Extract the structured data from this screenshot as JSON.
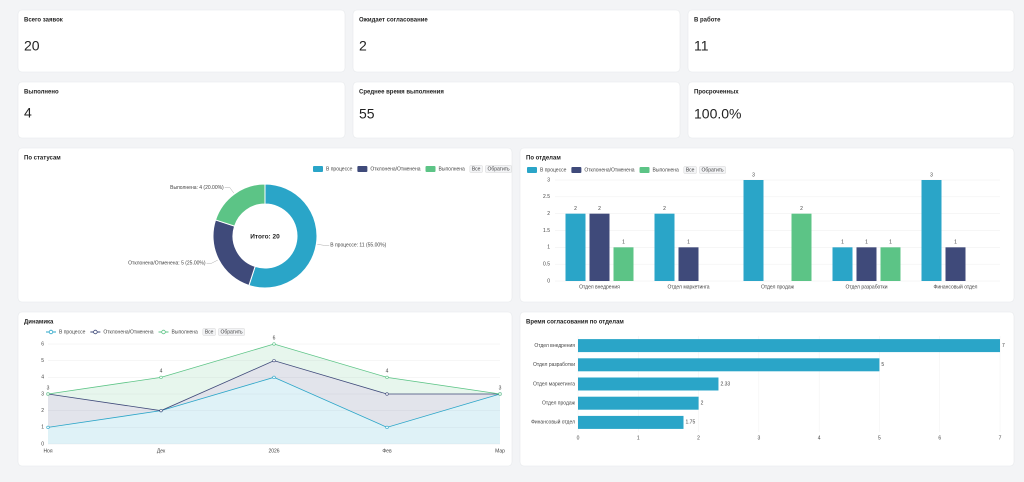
{
  "kpis": [
    {
      "label": "Всего заявок",
      "value": "20"
    },
    {
      "label": "Ожидает согласование",
      "value": "2"
    },
    {
      "label": "В работе",
      "value": "11"
    },
    {
      "label": "Выполнено",
      "value": "4"
    },
    {
      "label": "Среднее время выполнения",
      "value": "55"
    },
    {
      "label": "Просроченных",
      "value": "100.0%"
    }
  ],
  "chart_data": [
    {
      "type": "pie",
      "title": "По статусам",
      "categories": [
        "В процессе",
        "Отклонена/Отменена",
        "Выполнена"
      ],
      "values": [
        11,
        5,
        4
      ],
      "value_labels": [
        "В процессе: 11 (55.00%)",
        "Отклонена/Отменена: 5 (25.00%)",
        "Выполнена: 4 (20.00%)"
      ],
      "colors": [
        "#2aa5c8",
        "#3f4a7a",
        "#5cc486"
      ],
      "center_label": "Итого: 20",
      "legend_buttons": [
        "Все",
        "Обратить"
      ]
    },
    {
      "type": "bar",
      "title": "По отделам",
      "categories": [
        "Отдел внедрения",
        "Отдел маркетинга",
        "Отдел продаж",
        "Отдел разработки",
        "Финансовый отдел"
      ],
      "series": [
        {
          "name": "В процессе",
          "color": "#2aa5c8",
          "values": [
            2,
            2,
            3,
            1,
            3
          ]
        },
        {
          "name": "Отклонена/Отменена",
          "color": "#3f4a7a",
          "values": [
            2,
            1,
            null,
            1,
            1
          ]
        },
        {
          "name": "Выполнена",
          "color": "#5cc486",
          "values": [
            1,
            null,
            2,
            1,
            null
          ]
        }
      ],
      "ylim": [
        0,
        3
      ],
      "yticks": [
        0,
        0.5,
        1,
        1.5,
        2,
        2.5,
        3
      ],
      "grid": true,
      "legend_buttons": [
        "Все",
        "Обратить"
      ]
    },
    {
      "type": "area",
      "title": "Динамика",
      "categories": [
        "Ноя",
        "Дек",
        "2026",
        "Фев",
        "Мар"
      ],
      "series": [
        {
          "name": "В процессе",
          "color": "#2aa5c8",
          "values": [
            1,
            2,
            4,
            1,
            3
          ]
        },
        {
          "name": "Отклонена/Отменена",
          "color": "#3f4a7a",
          "values": [
            2,
            0,
            1,
            2,
            0
          ]
        },
        {
          "name": "Выполнена",
          "color": "#5cc486",
          "values": [
            0,
            2,
            1,
            1,
            0
          ]
        }
      ],
      "stacked": true,
      "stack_totals": [
        3,
        4,
        6,
        4,
        3
      ],
      "ylim": [
        0,
        6
      ],
      "yticks": [
        0,
        1,
        2,
        3,
        4,
        5,
        6
      ],
      "grid": true,
      "legend_buttons": [
        "Все",
        "Обратить"
      ]
    },
    {
      "type": "hbar",
      "title": "Время согласования по отделам",
      "categories": [
        "Отдел внедрения",
        "Отдел разработки",
        "Отдел маркетинга",
        "Отдел продаж",
        "Финансовый отдел"
      ],
      "values": [
        7,
        5,
        2.33,
        2,
        1.75
      ],
      "color": "#2aa5c8",
      "xlim": [
        0,
        7
      ],
      "xticks": [
        0,
        1,
        2,
        3,
        4,
        5,
        6,
        7
      ],
      "grid": true
    }
  ]
}
